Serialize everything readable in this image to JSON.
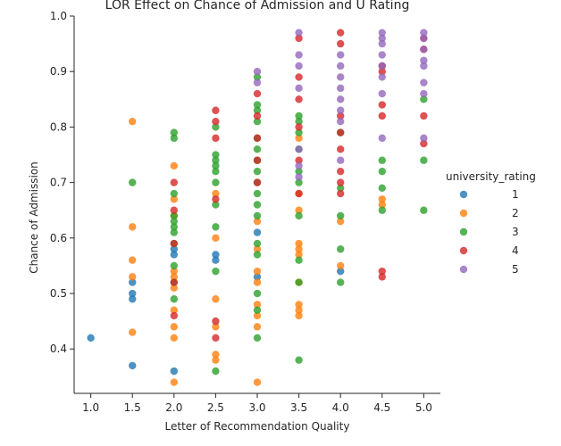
{
  "chart_data": {
    "type": "scatter",
    "title": "LOR Effect on Chance of Admission and U Rating",
    "xlabel": "Letter of Recommendation Quality",
    "ylabel": "Chance of Admission",
    "xlim": [
      0.8,
      5.2
    ],
    "ylim": [
      0.32,
      1.0
    ],
    "xticks": [
      "1.0",
      "1.5",
      "2.0",
      "2.5",
      "3.0",
      "3.5",
      "4.0",
      "4.5",
      "5.0"
    ],
    "yticks": [
      "0.4",
      "0.5",
      "0.6",
      "0.7",
      "0.8",
      "0.9",
      "1.0"
    ],
    "grid": false,
    "legend": {
      "title": "university_rating",
      "placement": "right"
    },
    "series": [
      {
        "name": "1",
        "color": "#1f77b4",
        "x": [
          1.0,
          1.5,
          1.5,
          1.5,
          1.5,
          2.0,
          2.0,
          2.0,
          2.5,
          2.5,
          3.0,
          3.0,
          4.0
        ],
        "y": [
          0.42,
          0.52,
          0.5,
          0.49,
          0.37,
          0.58,
          0.57,
          0.36,
          0.57,
          0.56,
          0.53,
          0.61,
          0.54
        ]
      },
      {
        "name": "2",
        "color": "#ff7f0e",
        "x": [
          1.5,
          1.5,
          1.5,
          1.5,
          1.5,
          2.0,
          2.0,
          2.0,
          2.0,
          2.0,
          2.0,
          2.0,
          2.0,
          2.0,
          2.0,
          2.5,
          2.5,
          2.5,
          2.5,
          2.5,
          2.5,
          3.0,
          3.0,
          3.0,
          3.0,
          3.0,
          3.0,
          3.0,
          3.0,
          3.5,
          3.5,
          3.5,
          3.5,
          3.5,
          3.5,
          3.5,
          3.5,
          3.5,
          3.5,
          4.0,
          4.0,
          4.5,
          4.5
        ],
        "y": [
          0.81,
          0.62,
          0.56,
          0.53,
          0.43,
          0.73,
          0.67,
          0.64,
          0.54,
          0.53,
          0.51,
          0.47,
          0.44,
          0.42,
          0.34,
          0.68,
          0.6,
          0.49,
          0.44,
          0.39,
          0.38,
          0.63,
          0.58,
          0.54,
          0.52,
          0.48,
          0.46,
          0.44,
          0.34,
          0.78,
          0.68,
          0.65,
          0.59,
          0.58,
          0.57,
          0.52,
          0.48,
          0.47,
          0.46,
          0.63,
          0.55,
          0.67,
          0.66
        ]
      },
      {
        "name": "3",
        "color": "#2ca02c",
        "x": [
          1.5,
          2.0,
          2.0,
          2.0,
          2.0,
          2.0,
          2.0,
          2.0,
          2.0,
          2.0,
          2.0,
          2.0,
          2.5,
          2.5,
          2.5,
          2.5,
          2.5,
          2.5,
          2.5,
          2.5,
          2.5,
          2.5,
          3.0,
          3.0,
          3.0,
          3.0,
          3.0,
          3.0,
          3.0,
          3.0,
          3.0,
          3.0,
          3.0,
          3.0,
          3.0,
          3.0,
          3.0,
          3.0,
          3.0,
          3.5,
          3.5,
          3.5,
          3.5,
          3.5,
          3.5,
          3.5,
          3.5,
          3.5,
          3.5,
          4.0,
          4.0,
          4.0,
          4.0,
          4.0,
          4.5,
          4.5,
          4.5,
          4.5,
          5.0,
          5.0,
          5.0
        ],
        "y": [
          0.7,
          0.79,
          0.78,
          0.68,
          0.64,
          0.63,
          0.62,
          0.61,
          0.59,
          0.55,
          0.52,
          0.49,
          0.8,
          0.75,
          0.74,
          0.73,
          0.72,
          0.7,
          0.66,
          0.62,
          0.54,
          0.36,
          0.89,
          0.84,
          0.83,
          0.81,
          0.78,
          0.76,
          0.74,
          0.72,
          0.7,
          0.68,
          0.66,
          0.64,
          0.59,
          0.57,
          0.5,
          0.47,
          0.42,
          0.82,
          0.81,
          0.79,
          0.76,
          0.72,
          0.7,
          0.64,
          0.56,
          0.52,
          0.38,
          0.79,
          0.69,
          0.64,
          0.58,
          0.52,
          0.74,
          0.72,
          0.69,
          0.65,
          0.85,
          0.74,
          0.65
        ]
      },
      {
        "name": "4",
        "color": "#d62728",
        "x": [
          2.0,
          2.0,
          2.0,
          2.0,
          2.0,
          2.5,
          2.5,
          2.5,
          2.5,
          2.5,
          2.5,
          3.0,
          3.0,
          3.0,
          3.0,
          3.0,
          3.5,
          3.5,
          3.5,
          3.5,
          3.5,
          3.5,
          4.0,
          4.0,
          4.0,
          4.0,
          4.0,
          4.0,
          4.0,
          4.0,
          4.5,
          4.5,
          4.5,
          4.5,
          4.5,
          4.5,
          5.0,
          5.0,
          5.0,
          5.0
        ],
        "y": [
          0.7,
          0.65,
          0.59,
          0.52,
          0.46,
          0.83,
          0.81,
          0.78,
          0.67,
          0.45,
          0.42,
          0.86,
          0.82,
          0.78,
          0.74,
          0.7,
          0.96,
          0.89,
          0.85,
          0.8,
          0.74,
          0.68,
          0.97,
          0.95,
          0.82,
          0.79,
          0.76,
          0.72,
          0.7,
          0.68,
          0.91,
          0.9,
          0.84,
          0.82,
          0.54,
          0.53,
          0.96,
          0.94,
          0.82,
          0.77
        ]
      },
      {
        "name": "5",
        "color": "#9467bd",
        "x": [
          3.0,
          3.0,
          3.5,
          3.5,
          3.5,
          3.5,
          3.5,
          3.5,
          3.5,
          4.0,
          4.0,
          4.0,
          4.0,
          4.0,
          4.0,
          4.0,
          4.0,
          4.5,
          4.5,
          4.5,
          4.5,
          4.5,
          4.5,
          4.5,
          4.5,
          5.0,
          5.0,
          5.0,
          5.0,
          5.0,
          5.0,
          5.0,
          5.0
        ],
        "y": [
          0.9,
          0.88,
          0.97,
          0.93,
          0.91,
          0.87,
          0.76,
          0.73,
          0.71,
          0.93,
          0.91,
          0.89,
          0.87,
          0.85,
          0.83,
          0.81,
          0.74,
          0.97,
          0.96,
          0.95,
          0.93,
          0.91,
          0.89,
          0.86,
          0.78,
          0.97,
          0.96,
          0.94,
          0.92,
          0.91,
          0.88,
          0.86,
          0.78
        ]
      }
    ]
  }
}
